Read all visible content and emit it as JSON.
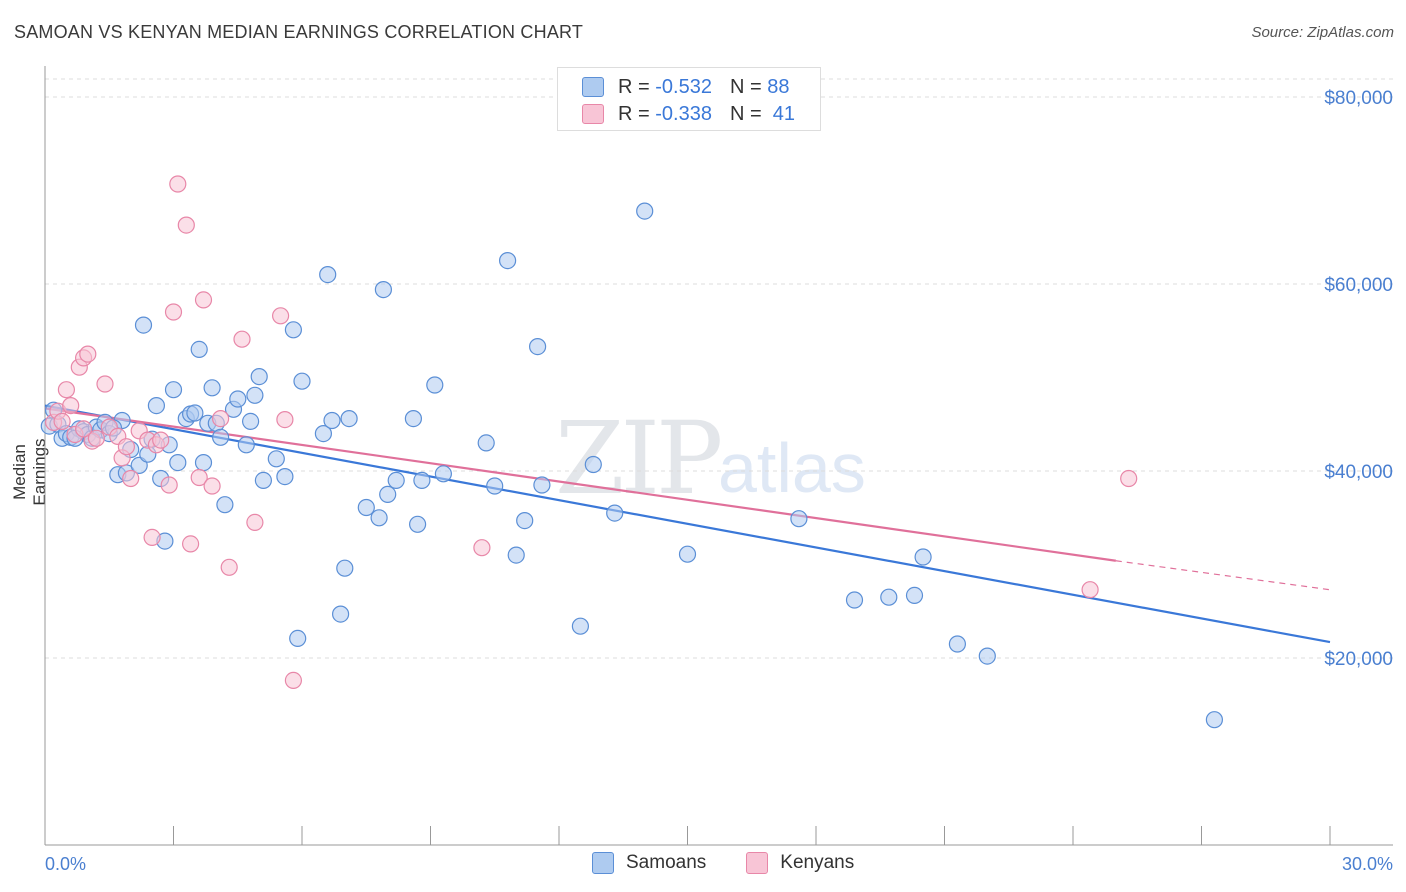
{
  "header": {
    "title": "SAMOAN VS KENYAN MEDIAN EARNINGS CORRELATION CHART",
    "source": "Source: ZipAtlas.com"
  },
  "watermark": {
    "zip": "ZIP",
    "atlas": "atlas"
  },
  "legend": {
    "samoans": {
      "r_label": "R =",
      "r_value": "-0.532",
      "n_label": "N =",
      "n_value": "88"
    },
    "kenyans": {
      "r_label": "R =",
      "r_value": "-0.338",
      "n_label": "N =",
      "n_value": "41"
    }
  },
  "bottom_legend": {
    "samoans": "Samoans",
    "kenyans": "Kenyans"
  },
  "colors": {
    "samoans_fill": "#aecbf0",
    "samoans_stroke": "#5b8fd6",
    "samoans_line": "#3a78d8",
    "kenyans_fill": "#f8c5d6",
    "kenyans_stroke": "#e887a8",
    "kenyans_line": "#e0709a",
    "axis_label": "#4a7fd0",
    "grid": "#dcdcdc"
  },
  "chart_data": {
    "type": "scatter",
    "title": "SAMOAN VS KENYAN MEDIAN EARNINGS CORRELATION CHART",
    "xlabel": "",
    "ylabel": "Median Earnings",
    "xlim": [
      0,
      30
    ],
    "ylim": [
      0,
      80000
    ],
    "x_tick_labels": [
      "0.0%",
      "30.0%"
    ],
    "y_ticks": [
      20000,
      40000,
      60000,
      80000
    ],
    "y_tick_labels": [
      "$20,000",
      "$40,000",
      "$60,000",
      "$80,000"
    ],
    "grid": true,
    "legend_position": "top-center",
    "series": [
      {
        "name": "Samoans",
        "trend": {
          "x": [
            0.0,
            30.0
          ],
          "y": [
            47000,
            21700
          ]
        },
        "points": [
          [
            0.1,
            44800
          ],
          [
            0.2,
            46500
          ],
          [
            0.3,
            45000
          ],
          [
            0.4,
            43500
          ],
          [
            0.5,
            44000
          ],
          [
            0.6,
            43600
          ],
          [
            0.8,
            44500
          ],
          [
            0.9,
            44200
          ],
          [
            1.0,
            43900
          ],
          [
            1.1,
            43500
          ],
          [
            1.2,
            44700
          ],
          [
            1.3,
            44400
          ],
          [
            1.4,
            45200
          ],
          [
            1.5,
            44000
          ],
          [
            1.7,
            39600
          ],
          [
            1.8,
            45400
          ],
          [
            1.9,
            39800
          ],
          [
            2.0,
            42300
          ],
          [
            2.2,
            40600
          ],
          [
            2.3,
            55600
          ],
          [
            2.4,
            41800
          ],
          [
            2.5,
            43400
          ],
          [
            2.6,
            47000
          ],
          [
            2.7,
            39200
          ],
          [
            2.8,
            32500
          ],
          [
            2.9,
            42800
          ],
          [
            3.0,
            48700
          ],
          [
            3.1,
            40900
          ],
          [
            3.3,
            45600
          ],
          [
            3.4,
            46100
          ],
          [
            3.5,
            46200
          ],
          [
            3.6,
            53000
          ],
          [
            3.7,
            40900
          ],
          [
            3.8,
            45100
          ],
          [
            3.9,
            48900
          ],
          [
            4.0,
            45100
          ],
          [
            4.1,
            43600
          ],
          [
            4.2,
            36400
          ],
          [
            4.4,
            46600
          ],
          [
            4.5,
            47700
          ],
          [
            4.7,
            42800
          ],
          [
            4.8,
            45300
          ],
          [
            4.9,
            48100
          ],
          [
            5.0,
            50100
          ],
          [
            5.1,
            39000
          ],
          [
            5.4,
            41300
          ],
          [
            5.6,
            39400
          ],
          [
            5.8,
            55100
          ],
          [
            5.9,
            22100
          ],
          [
            6.0,
            49600
          ],
          [
            6.5,
            44000
          ],
          [
            6.6,
            61000
          ],
          [
            6.7,
            45400
          ],
          [
            6.9,
            24700
          ],
          [
            7.0,
            29600
          ],
          [
            7.1,
            45600
          ],
          [
            7.5,
            36100
          ],
          [
            7.8,
            35000
          ],
          [
            7.9,
            59400
          ],
          [
            8.0,
            37500
          ],
          [
            8.2,
            39000
          ],
          [
            8.6,
            45600
          ],
          [
            8.7,
            34300
          ],
          [
            8.8,
            39000
          ],
          [
            9.1,
            49200
          ],
          [
            9.3,
            39700
          ],
          [
            10.3,
            43000
          ],
          [
            10.5,
            38400
          ],
          [
            10.8,
            62500
          ],
          [
            11.0,
            31000
          ],
          [
            11.2,
            34700
          ],
          [
            11.5,
            53300
          ],
          [
            11.6,
            38500
          ],
          [
            12.5,
            23400
          ],
          [
            12.8,
            40700
          ],
          [
            13.3,
            35500
          ],
          [
            14.0,
            67800
          ],
          [
            15.0,
            31100
          ],
          [
            17.6,
            34900
          ],
          [
            18.9,
            26200
          ],
          [
            19.7,
            26500
          ],
          [
            20.3,
            26700
          ],
          [
            20.5,
            30800
          ],
          [
            21.3,
            21500
          ],
          [
            22.0,
            20200
          ],
          [
            27.3,
            13400
          ],
          [
            0.7,
            43500
          ],
          [
            1.6,
            44600
          ]
        ]
      },
      {
        "name": "Kenyans",
        "trend": {
          "x": [
            0.0,
            25.0
          ],
          "y": [
            46700,
            30400
          ]
        },
        "trend_dashed": {
          "x": [
            25.0,
            30.0
          ],
          "y": [
            30400,
            27300
          ]
        },
        "points": [
          [
            0.2,
            45200
          ],
          [
            0.3,
            46400
          ],
          [
            0.4,
            45300
          ],
          [
            0.5,
            48700
          ],
          [
            0.6,
            47000
          ],
          [
            0.7,
            43900
          ],
          [
            0.8,
            51100
          ],
          [
            0.9,
            52100
          ],
          [
            1.0,
            52500
          ],
          [
            1.1,
            43200
          ],
          [
            1.2,
            43500
          ],
          [
            1.4,
            49300
          ],
          [
            1.5,
            44700
          ],
          [
            1.7,
            43700
          ],
          [
            1.8,
            41400
          ],
          [
            1.9,
            42600
          ],
          [
            2.0,
            39200
          ],
          [
            2.2,
            44300
          ],
          [
            2.4,
            43300
          ],
          [
            2.5,
            32900
          ],
          [
            2.6,
            42800
          ],
          [
            2.7,
            43300
          ],
          [
            2.9,
            38500
          ],
          [
            3.0,
            57000
          ],
          [
            3.1,
            70700
          ],
          [
            3.3,
            66300
          ],
          [
            3.4,
            32200
          ],
          [
            3.6,
            39300
          ],
          [
            3.7,
            58300
          ],
          [
            3.9,
            38400
          ],
          [
            4.1,
            45600
          ],
          [
            4.3,
            29700
          ],
          [
            4.6,
            54100
          ],
          [
            4.9,
            34500
          ],
          [
            5.5,
            56600
          ],
          [
            5.6,
            45500
          ],
          [
            5.8,
            17600
          ],
          [
            10.2,
            31800
          ],
          [
            24.4,
            27300
          ],
          [
            25.3,
            39200
          ],
          [
            0.9,
            44500
          ]
        ]
      }
    ]
  }
}
